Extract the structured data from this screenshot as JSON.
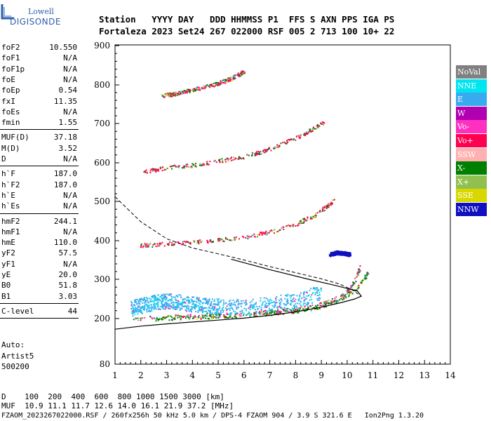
{
  "logo": {
    "line1": "Lowell",
    "line2": "DIGISONDE"
  },
  "header": {
    "row1": "Station   YYYY DAY   DDD HHMMSS P1  FFS S AXN PPS IGA PS",
    "row2": "Fortaleza 2023 Set24 267 022000 RSF 005 2 713 100 10+ 22"
  },
  "params": [
    {
      "group": [
        {
          "k": "foF2",
          "v": "10.550"
        },
        {
          "k": "foF1",
          "v": "N/A"
        },
        {
          "k": "foF1p",
          "v": "N/A"
        },
        {
          "k": "foE",
          "v": "N/A"
        },
        {
          "k": "foEp",
          "v": "0.54"
        },
        {
          "k": "fxI",
          "v": "11.35"
        },
        {
          "k": "foEs",
          "v": "N/A"
        },
        {
          "k": "fmin",
          "v": "1.55"
        }
      ]
    },
    {
      "group": [
        {
          "k": "MUF(D)",
          "v": "37.18"
        },
        {
          "k": "M(D)",
          "v": "3.52"
        },
        {
          "k": "D",
          "v": "N/A"
        }
      ]
    },
    {
      "group": [
        {
          "k": "h`F",
          "v": "187.0"
        },
        {
          "k": "h`F2",
          "v": "187.0"
        },
        {
          "k": "h`E",
          "v": "N/A"
        },
        {
          "k": "h`Es",
          "v": "N/A"
        }
      ]
    },
    {
      "group": [
        {
          "k": "hmF2",
          "v": "244.1"
        },
        {
          "k": "hmF1",
          "v": "N/A"
        },
        {
          "k": "hmE",
          "v": "110.0"
        },
        {
          "k": "yF2",
          "v": "57.5"
        },
        {
          "k": "yF1",
          "v": "N/A"
        },
        {
          "k": "yE",
          "v": "20.0"
        },
        {
          "k": "B0",
          "v": "51.8"
        },
        {
          "k": "B1",
          "v": "3.03"
        }
      ]
    },
    {
      "group": [
        {
          "k": "C-level",
          "v": "44"
        }
      ]
    }
  ],
  "auto": {
    "line1": "Auto:",
    "line2": "Artist5",
    "line3": "500200"
  },
  "legend": [
    {
      "label": "NoVal",
      "color": "#808080"
    },
    {
      "label": "NNE",
      "color": "#00e6f0"
    },
    {
      "label": "E",
      "color": "#3aaaf0"
    },
    {
      "label": "W",
      "color": "#b000b0"
    },
    {
      "label": "Vo-",
      "color": "#ff30c0"
    },
    {
      "label": "Vo+",
      "color": "#ff0050"
    },
    {
      "label": "SSW",
      "color": "#ffb0b0"
    },
    {
      "label": "X-",
      "color": "#008000"
    },
    {
      "label": "X+",
      "color": "#90c050"
    },
    {
      "label": "SSE",
      "color": "#d8d800"
    },
    {
      "label": "NNW",
      "color": "#1010c0"
    }
  ],
  "footer": {
    "line1": "D    100  200  400  600  800 1000 1500 3000 [km]",
    "line2": "MUF  10.9 11.1 11.7 12.6 14.0 16.1 21.9 37.2 [MHz]",
    "line3": "FZAOM_2023267022000.RSF / 260fx256h 50 kHz 5.0 km / DPS-4 FZAOM 904 / 3.9 S 321.6 E   Ion2Png 1.3.20"
  },
  "chart_data": {
    "type": "scatter",
    "x_ticks": [
      "1",
      "2",
      "3",
      "4",
      "5",
      "6",
      "7",
      "8",
      "9",
      "10",
      "11",
      "12",
      "13",
      "14"
    ],
    "y_ticks": [
      "80",
      "200",
      "300",
      "400",
      "500",
      "600",
      "700",
      "800",
      "900"
    ],
    "xlim": [
      1,
      14
    ],
    "y_tick_values": [
      80,
      200,
      300,
      400,
      500,
      600,
      700,
      800,
      900
    ],
    "traces": [
      {
        "name": "1F2 O-trace",
        "color": "#ff30c0",
        "points": [
          [
            1.7,
            200
          ],
          [
            3,
            205
          ],
          [
            4,
            208
          ],
          [
            5,
            210
          ],
          [
            6,
            213
          ],
          [
            7,
            218
          ],
          [
            8,
            225
          ],
          [
            9,
            238
          ],
          [
            9.5,
            250
          ],
          [
            10,
            270
          ],
          [
            10.3,
            300
          ],
          [
            10.5,
            335
          ]
        ]
      },
      {
        "name": "1F2 X-trace",
        "color": "#008000",
        "points": [
          [
            2.5,
            200
          ],
          [
            4,
            204
          ],
          [
            5.5,
            208
          ],
          [
            7,
            214
          ],
          [
            8,
            220
          ],
          [
            9,
            232
          ],
          [
            9.8,
            252
          ],
          [
            10.4,
            282
          ],
          [
            10.8,
            318
          ]
        ]
      },
      {
        "name": "2F2",
        "color": "#ff0050",
        "points": [
          [
            1.9,
            388
          ],
          [
            3,
            393
          ],
          [
            4,
            397
          ],
          [
            5,
            403
          ],
          [
            6,
            410
          ],
          [
            7,
            423
          ],
          [
            8,
            443
          ],
          [
            8.7,
            465
          ],
          [
            9.2,
            488
          ],
          [
            9.5,
            505
          ]
        ]
      },
      {
        "name": "3F2",
        "color": "#ff0050",
        "points": [
          [
            2.1,
            578
          ],
          [
            3,
            588
          ],
          [
            4,
            595
          ],
          [
            5,
            606
          ],
          [
            6,
            617
          ],
          [
            7,
            636
          ],
          [
            8,
            664
          ],
          [
            8.6,
            685
          ],
          [
            9.1,
            705
          ]
        ]
      },
      {
        "name": "4F2",
        "color": "#ff0050",
        "points": [
          [
            2.8,
            773
          ],
          [
            3.5,
            780
          ],
          [
            4.2,
            792
          ],
          [
            5,
            805
          ],
          [
            5.5,
            818
          ],
          [
            6,
            835
          ]
        ]
      },
      {
        "name": "spread-F",
        "color": "#3aaaf0",
        "points": [
          [
            1.6,
            215
          ],
          [
            2,
            222
          ],
          [
            2.5,
            230
          ],
          [
            3,
            235
          ],
          [
            3.5,
            230
          ],
          [
            4,
            225
          ],
          [
            4.5,
            222
          ],
          [
            5,
            220
          ],
          [
            6,
            218
          ],
          [
            7,
            225
          ],
          [
            8,
            235
          ],
          [
            9,
            255
          ]
        ]
      },
      {
        "name": "W echoes",
        "color": "#1010c0",
        "points": [
          [
            9.3,
            365
          ],
          [
            9.6,
            370
          ],
          [
            9.9,
            368
          ],
          [
            10.1,
            365
          ]
        ]
      }
    ],
    "profile": {
      "name": "electron density profile",
      "style": "solid",
      "points": [
        [
          1.0,
          172
        ],
        [
          2,
          180
        ],
        [
          3,
          186
        ],
        [
          4,
          191
        ],
        [
          5,
          196
        ],
        [
          6,
          201
        ],
        [
          7,
          208
        ],
        [
          8,
          217
        ],
        [
          9,
          229
        ],
        [
          9.8,
          241
        ],
        [
          10.3,
          250
        ],
        [
          10.55,
          257
        ],
        [
          10.4,
          270
        ],
        [
          9.5,
          285
        ],
        [
          8.5,
          300
        ],
        [
          7,
          325
        ],
        [
          5.5,
          352
        ]
      ]
    },
    "extrapolation": {
      "name": "topside extrapolation",
      "style": "dashed",
      "points": [
        [
          1.0,
          512
        ],
        [
          2,
          448
        ],
        [
          3,
          405
        ],
        [
          4,
          381
        ],
        [
          5,
          366
        ],
        [
          6,
          350
        ],
        [
          7,
          333
        ],
        [
          8,
          317
        ],
        [
          9,
          301
        ],
        [
          9.7,
          288
        ],
        [
          10.2,
          273
        ],
        [
          10.55,
          257
        ]
      ]
    }
  }
}
